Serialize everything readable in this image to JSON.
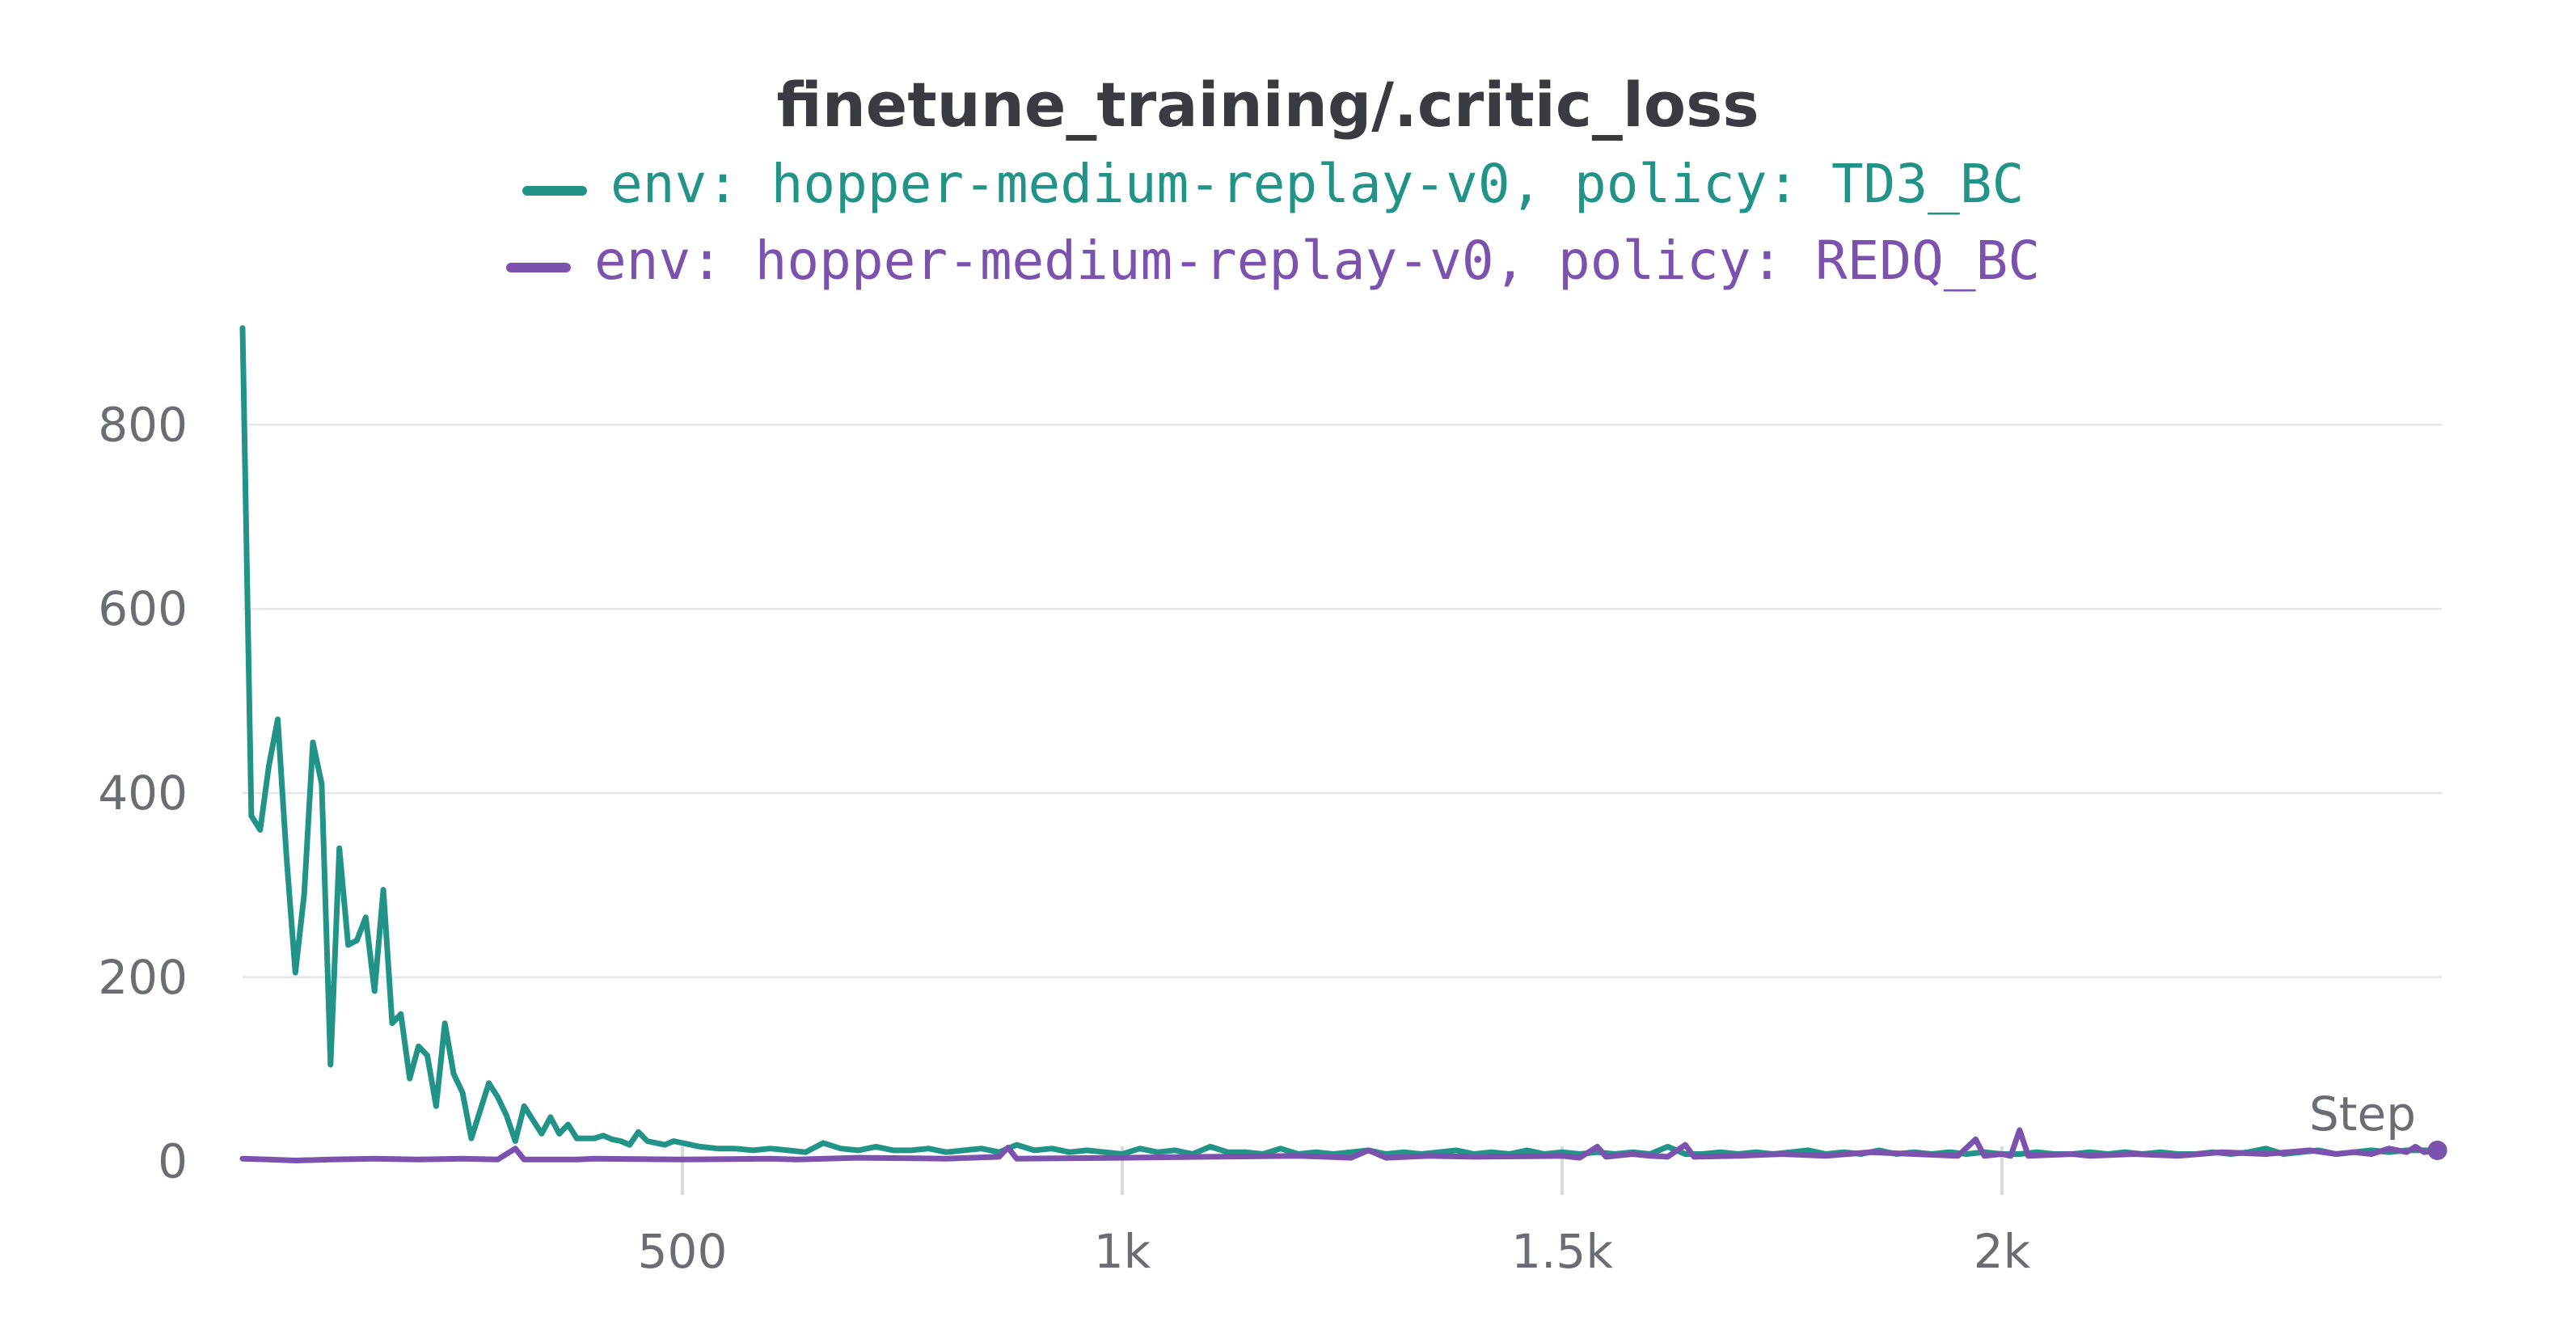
{
  "chart_data": {
    "type": "line",
    "title": "finetune_training/.critic_loss",
    "xlabel": "Step",
    "ylabel": "",
    "xlim": [
      0,
      2500
    ],
    "ylim": [
      -10,
      910
    ],
    "x_ticks": [
      {
        "value": 500,
        "label": "500"
      },
      {
        "value": 1000,
        "label": "1k"
      },
      {
        "value": 1500,
        "label": "1.5k"
      },
      {
        "value": 2000,
        "label": "2k"
      }
    ],
    "y_ticks": [
      {
        "value": 0,
        "label": "0"
      },
      {
        "value": 200,
        "label": "200"
      },
      {
        "value": 400,
        "label": "400"
      },
      {
        "value": 600,
        "label": "600"
      },
      {
        "value": 800,
        "label": "800"
      }
    ],
    "grid": true,
    "legend_position": "top-center",
    "series": [
      {
        "name": "env: hopper-medium-replay-v0, policy: TD3_BC",
        "color": "#229487",
        "points": [
          [
            0,
            905
          ],
          [
            10,
            375
          ],
          [
            20,
            360
          ],
          [
            30,
            430
          ],
          [
            40,
            480
          ],
          [
            50,
            330
          ],
          [
            60,
            205
          ],
          [
            70,
            290
          ],
          [
            80,
            455
          ],
          [
            90,
            410
          ],
          [
            100,
            105
          ],
          [
            110,
            340
          ],
          [
            120,
            235
          ],
          [
            130,
            240
          ],
          [
            140,
            265
          ],
          [
            150,
            185
          ],
          [
            160,
            295
          ],
          [
            170,
            150
          ],
          [
            180,
            160
          ],
          [
            190,
            90
          ],
          [
            200,
            125
          ],
          [
            210,
            115
          ],
          [
            220,
            60
          ],
          [
            230,
            150
          ],
          [
            240,
            95
          ],
          [
            250,
            75
          ],
          [
            260,
            25
          ],
          [
            270,
            55
          ],
          [
            280,
            85
          ],
          [
            290,
            70
          ],
          [
            300,
            50
          ],
          [
            310,
            22
          ],
          [
            320,
            60
          ],
          [
            330,
            45
          ],
          [
            340,
            30
          ],
          [
            350,
            48
          ],
          [
            360,
            30
          ],
          [
            370,
            40
          ],
          [
            380,
            25
          ],
          [
            390,
            25
          ],
          [
            400,
            25
          ],
          [
            410,
            28
          ],
          [
            420,
            24
          ],
          [
            430,
            22
          ],
          [
            440,
            18
          ],
          [
            450,
            32
          ],
          [
            460,
            22
          ],
          [
            470,
            20
          ],
          [
            480,
            18
          ],
          [
            490,
            22
          ],
          [
            500,
            20
          ],
          [
            520,
            16
          ],
          [
            540,
            14
          ],
          [
            560,
            14
          ],
          [
            580,
            12
          ],
          [
            600,
            14
          ],
          [
            620,
            12
          ],
          [
            640,
            10
          ],
          [
            660,
            20
          ],
          [
            680,
            14
          ],
          [
            700,
            12
          ],
          [
            720,
            16
          ],
          [
            740,
            12
          ],
          [
            760,
            12
          ],
          [
            780,
            14
          ],
          [
            800,
            10
          ],
          [
            820,
            12
          ],
          [
            840,
            14
          ],
          [
            860,
            10
          ],
          [
            880,
            18
          ],
          [
            900,
            12
          ],
          [
            920,
            14
          ],
          [
            940,
            10
          ],
          [
            960,
            12
          ],
          [
            980,
            10
          ],
          [
            1000,
            8
          ],
          [
            1020,
            14
          ],
          [
            1040,
            10
          ],
          [
            1060,
            12
          ],
          [
            1080,
            8
          ],
          [
            1100,
            16
          ],
          [
            1120,
            10
          ],
          [
            1140,
            10
          ],
          [
            1160,
            8
          ],
          [
            1180,
            14
          ],
          [
            1200,
            8
          ],
          [
            1220,
            10
          ],
          [
            1240,
            8
          ],
          [
            1260,
            10
          ],
          [
            1280,
            12
          ],
          [
            1300,
            8
          ],
          [
            1320,
            10
          ],
          [
            1340,
            8
          ],
          [
            1360,
            10
          ],
          [
            1380,
            12
          ],
          [
            1400,
            8
          ],
          [
            1420,
            10
          ],
          [
            1440,
            8
          ],
          [
            1460,
            12
          ],
          [
            1480,
            8
          ],
          [
            1500,
            10
          ],
          [
            1520,
            8
          ],
          [
            1540,
            10
          ],
          [
            1560,
            8
          ],
          [
            1580,
            10
          ],
          [
            1600,
            8
          ],
          [
            1620,
            16
          ],
          [
            1640,
            8
          ],
          [
            1660,
            8
          ],
          [
            1680,
            10
          ],
          [
            1700,
            8
          ],
          [
            1720,
            10
          ],
          [
            1740,
            8
          ],
          [
            1760,
            10
          ],
          [
            1780,
            12
          ],
          [
            1800,
            8
          ],
          [
            1820,
            10
          ],
          [
            1840,
            8
          ],
          [
            1860,
            12
          ],
          [
            1880,
            8
          ],
          [
            1900,
            10
          ],
          [
            1920,
            8
          ],
          [
            1940,
            10
          ],
          [
            1960,
            8
          ],
          [
            1980,
            10
          ],
          [
            2000,
            8
          ],
          [
            2020,
            8
          ],
          [
            2040,
            10
          ],
          [
            2060,
            8
          ],
          [
            2080,
            8
          ],
          [
            2100,
            10
          ],
          [
            2120,
            8
          ],
          [
            2140,
            10
          ],
          [
            2160,
            8
          ],
          [
            2180,
            10
          ],
          [
            2200,
            8
          ],
          [
            2220,
            8
          ],
          [
            2240,
            10
          ],
          [
            2260,
            8
          ],
          [
            2280,
            10
          ],
          [
            2300,
            14
          ],
          [
            2320,
            8
          ],
          [
            2340,
            10
          ],
          [
            2360,
            12
          ],
          [
            2380,
            8
          ],
          [
            2400,
            10
          ],
          [
            2420,
            12
          ],
          [
            2440,
            10
          ],
          [
            2460,
            12
          ],
          [
            2480,
            12
          ],
          [
            2495,
            12
          ]
        ]
      },
      {
        "name": "env: hopper-medium-replay-v0, policy: REDQ_BC",
        "color": "#7b52ae",
        "points": [
          [
            0,
            3
          ],
          [
            30,
            2
          ],
          [
            60,
            1
          ],
          [
            100,
            2
          ],
          [
            150,
            3
          ],
          [
            200,
            2
          ],
          [
            250,
            3
          ],
          [
            290,
            2
          ],
          [
            310,
            14
          ],
          [
            320,
            2
          ],
          [
            380,
            2
          ],
          [
            400,
            3
          ],
          [
            500,
            2
          ],
          [
            600,
            3
          ],
          [
            630,
            2
          ],
          [
            700,
            4
          ],
          [
            800,
            3
          ],
          [
            860,
            5
          ],
          [
            870,
            15
          ],
          [
            880,
            3
          ],
          [
            1000,
            4
          ],
          [
            1100,
            5
          ],
          [
            1200,
            6
          ],
          [
            1260,
            4
          ],
          [
            1280,
            12
          ],
          [
            1300,
            4
          ],
          [
            1350,
            6
          ],
          [
            1400,
            5
          ],
          [
            1500,
            6
          ],
          [
            1520,
            4
          ],
          [
            1540,
            16
          ],
          [
            1550,
            5
          ],
          [
            1580,
            8
          ],
          [
            1600,
            6
          ],
          [
            1620,
            5
          ],
          [
            1640,
            18
          ],
          [
            1650,
            5
          ],
          [
            1700,
            6
          ],
          [
            1750,
            8
          ],
          [
            1800,
            6
          ],
          [
            1850,
            10
          ],
          [
            1900,
            8
          ],
          [
            1950,
            6
          ],
          [
            1970,
            24
          ],
          [
            1980,
            6
          ],
          [
            2000,
            8
          ],
          [
            2010,
            6
          ],
          [
            2020,
            34
          ],
          [
            2030,
            6
          ],
          [
            2080,
            8
          ],
          [
            2100,
            6
          ],
          [
            2150,
            8
          ],
          [
            2200,
            6
          ],
          [
            2250,
            10
          ],
          [
            2300,
            8
          ],
          [
            2350,
            12
          ],
          [
            2380,
            8
          ],
          [
            2400,
            10
          ],
          [
            2420,
            8
          ],
          [
            2440,
            14
          ],
          [
            2460,
            10
          ],
          [
            2470,
            16
          ],
          [
            2480,
            10
          ],
          [
            2495,
            12
          ]
        ]
      }
    ]
  }
}
